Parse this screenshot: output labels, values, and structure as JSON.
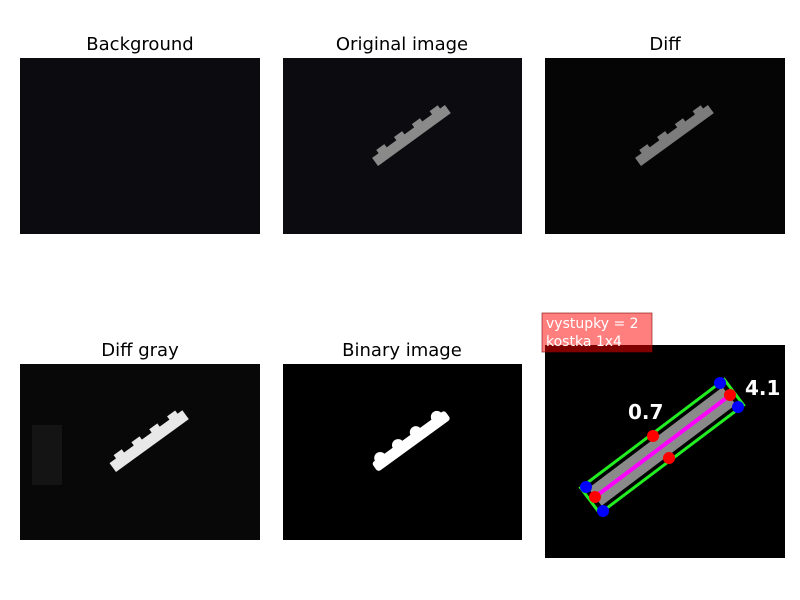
{
  "panels": [
    {
      "title": "Background"
    },
    {
      "title": "Original image"
    },
    {
      "title": "Diff"
    },
    {
      "title": "Diff gray"
    },
    {
      "title": "Binary image"
    },
    {
      "annotation": [
        "vystupky = 2",
        "kostka 1x4"
      ],
      "labels": [
        "0.7",
        "4.1"
      ]
    }
  ]
}
